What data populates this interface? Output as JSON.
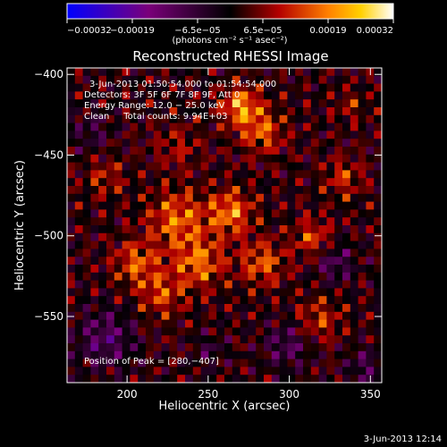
{
  "chart_data": {
    "type": "heatmap",
    "title": "Reconstructed RHESSI Image",
    "xlabel": "Heliocentric X (arcsec)",
    "ylabel": "Heliocentric Y (arcsec)",
    "xlim": [
      163,
      357
    ],
    "ylim": [
      -591,
      -396
    ],
    "x_ticks": [
      200,
      250,
      300,
      350
    ],
    "y_ticks": [
      -400,
      -450,
      -500,
      -550
    ],
    "x_tick_labels": [
      "200",
      "250",
      "300",
      "350"
    ],
    "y_tick_labels": [
      "−400",
      "−450",
      "−500",
      "−550"
    ],
    "colorbar": {
      "range": [
        -0.00032,
        0.00032
      ],
      "ticks": [
        "−0.00032",
        "−0.00019",
        "−6.5e−05",
        "6.5e−05",
        "0.00019",
        "0.00032"
      ],
      "unit_label": "(photons cm⁻² s⁻¹ asec⁻²)"
    },
    "annotations": [
      "3-Jun-2013 01:50:54.000 to 01:54:54.000",
      "Detectors: 3F 5F 6F 7F 8F 9F, Att 0",
      "Energy Range: 12.0 − 25.0 keV",
      "Clean     Total counts: 9.94E+03"
    ],
    "peak_label": "Position of Peak = [280,−407]",
    "peak_position": [
      280,
      -407
    ],
    "colormap": [
      "#0000ff",
      "#7a007a",
      "#000000",
      "#b40000",
      "#ff8000",
      "#ffd000",
      "#ffffff"
    ]
  },
  "footer": {
    "date": "3-Jun-2013 12:14"
  }
}
